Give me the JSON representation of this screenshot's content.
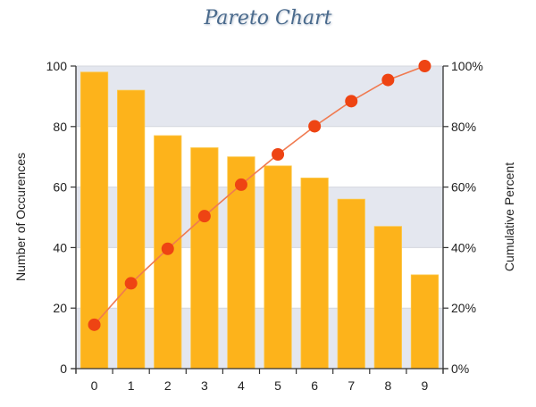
{
  "title": "Pareto Chart",
  "chart_data": {
    "type": "bar",
    "title": "Pareto Chart",
    "xlabel": "",
    "ylabel": "Number of Occurences",
    "y2label": "Cumulative Percent",
    "categories": [
      "0",
      "1",
      "2",
      "3",
      "4",
      "5",
      "6",
      "7",
      "8",
      "9"
    ],
    "series": [
      {
        "name": "Occurrences",
        "type": "bar",
        "axis": "left",
        "color": "#FDB31B",
        "values": [
          98,
          92,
          77,
          73,
          70,
          67,
          63,
          56,
          47,
          31
        ]
      },
      {
        "name": "Cumulative Percent",
        "type": "line",
        "axis": "right",
        "color": "#EE4413",
        "line_color": "#F07A50",
        "values": [
          14.5,
          28.2,
          39.6,
          50.4,
          60.8,
          70.8,
          80.1,
          88.4,
          95.4,
          100.0
        ]
      }
    ],
    "ylim": [
      0,
      100
    ],
    "y2lim": [
      0,
      100
    ],
    "yticks": [
      "0",
      "20",
      "40",
      "60",
      "80",
      "100"
    ],
    "y2ticks": [
      "0%",
      "20%",
      "40%",
      "60%",
      "80%",
      "100%"
    ],
    "grid": true,
    "band_color": "#E4E7EF",
    "legend": "none"
  }
}
